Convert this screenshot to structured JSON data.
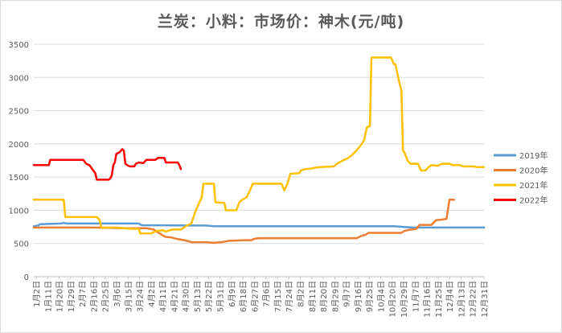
{
  "chart_data": {
    "type": "line",
    "title": "兰炭：小料：市场价：神木(元/吨)",
    "xlabel": "",
    "ylabel": "",
    "ylim": [
      0,
      3500
    ],
    "yticks": [
      0,
      500,
      1000,
      1500,
      2000,
      2500,
      3000,
      3500
    ],
    "grid": true,
    "legend_position": "right",
    "x_tick_labels": [
      "1月2日",
      "1月11日",
      "1月20日",
      "1月29日",
      "2月7日",
      "2月16日",
      "2月25日",
      "3月6日",
      "3月15日",
      "3月24日",
      "4月2日",
      "4月11日",
      "4月21日",
      "4月30日",
      "5月13日",
      "5月22日",
      "5月31日",
      "6月9日",
      "6月18日",
      "6月27日",
      "7月6日",
      "7月15日",
      "7月24日",
      "8月2日",
      "8月11日",
      "8月20日",
      "8月29日",
      "9月7日",
      "9月16日",
      "9月25日",
      "10月4日",
      "10月20日",
      "10月29日",
      "11月7日",
      "11月16日",
      "11月25日",
      "12月4日",
      "12月13日",
      "12月22日",
      "12月31日"
    ],
    "series": [
      {
        "name": "2019年",
        "color": "#5b9bd5",
        "points": [
          [
            0,
            760
          ],
          [
            3,
            770
          ],
          [
            4,
            790
          ],
          [
            18,
            800
          ],
          [
            20,
            810
          ],
          [
            22,
            800
          ],
          [
            40,
            800
          ],
          [
            70,
            800
          ],
          [
            72,
            775
          ],
          [
            110,
            770
          ],
          [
            115,
            770
          ],
          [
            120,
            760
          ],
          [
            140,
            760
          ],
          [
            205,
            760
          ],
          [
            220,
            760
          ],
          [
            228,
            760
          ],
          [
            240,
            760
          ],
          [
            252,
            740
          ],
          [
            300,
            740
          ]
        ]
      },
      {
        "name": "2020年",
        "color": "#ed7d31",
        "points": [
          [
            0,
            740
          ],
          [
            40,
            740
          ],
          [
            60,
            730
          ],
          [
            75,
            730
          ],
          [
            80,
            710
          ],
          [
            82,
            680
          ],
          [
            84,
            650
          ],
          [
            86,
            620
          ],
          [
            88,
            600
          ],
          [
            92,
            590
          ],
          [
            95,
            570
          ],
          [
            100,
            550
          ],
          [
            102,
            540
          ],
          [
            105,
            520
          ],
          [
            110,
            520
          ],
          [
            115,
            520
          ],
          [
            120,
            510
          ],
          [
            125,
            520
          ],
          [
            130,
            540
          ],
          [
            140,
            550
          ],
          [
            145,
            550
          ],
          [
            147,
            570
          ],
          [
            150,
            580
          ],
          [
            215,
            580
          ],
          [
            217,
            600
          ],
          [
            219,
            620
          ],
          [
            221,
            630
          ],
          [
            223,
            660
          ],
          [
            230,
            660
          ],
          [
            245,
            660
          ],
          [
            247,
            690
          ],
          [
            249,
            700
          ],
          [
            255,
            720
          ],
          [
            257,
            780
          ],
          [
            265,
            780
          ],
          [
            268,
            850
          ],
          [
            272,
            860
          ],
          [
            275,
            870
          ],
          [
            277,
            1160
          ],
          [
            280,
            1160
          ]
        ]
      },
      {
        "name": "2021年",
        "color": "#ffc000",
        "points": [
          [
            0,
            1160
          ],
          [
            20,
            1160
          ],
          [
            21,
            900
          ],
          [
            42,
            900
          ],
          [
            44,
            850
          ],
          [
            45,
            740
          ],
          [
            55,
            740
          ],
          [
            65,
            720
          ],
          [
            70,
            720
          ],
          [
            71,
            650
          ],
          [
            78,
            650
          ],
          [
            82,
            690
          ],
          [
            86,
            700
          ],
          [
            88,
            680
          ],
          [
            92,
            710
          ],
          [
            98,
            710
          ],
          [
            102,
            770
          ],
          [
            105,
            800
          ],
          [
            108,
            1000
          ],
          [
            112,
            1200
          ],
          [
            113,
            1400
          ],
          [
            120,
            1400
          ],
          [
            121,
            1120
          ],
          [
            127,
            1110
          ],
          [
            128,
            1000
          ],
          [
            135,
            1000
          ],
          [
            137,
            1120
          ],
          [
            139,
            1160
          ],
          [
            142,
            1200
          ],
          [
            144,
            1300
          ],
          [
            146,
            1400
          ],
          [
            165,
            1400
          ],
          [
            167,
            1300
          ],
          [
            169,
            1400
          ],
          [
            171,
            1550
          ],
          [
            177,
            1560
          ],
          [
            178,
            1600
          ],
          [
            181,
            1620
          ],
          [
            185,
            1630
          ],
          [
            190,
            1650
          ],
          [
            200,
            1660
          ],
          [
            202,
            1700
          ],
          [
            206,
            1750
          ],
          [
            209,
            1780
          ],
          [
            212,
            1830
          ],
          [
            215,
            1900
          ],
          [
            218,
            1980
          ],
          [
            220,
            2050
          ],
          [
            222,
            2250
          ],
          [
            224,
            2270
          ],
          [
            225,
            3300
          ],
          [
            238,
            3300
          ],
          [
            240,
            3200
          ],
          [
            241,
            3200
          ],
          [
            243,
            2980
          ],
          [
            245,
            2800
          ],
          [
            246,
            1900
          ],
          [
            247,
            1870
          ],
          [
            249,
            1750
          ],
          [
            251,
            1700
          ],
          [
            256,
            1700
          ],
          [
            258,
            1600
          ],
          [
            261,
            1600
          ],
          [
            263,
            1650
          ],
          [
            265,
            1680
          ],
          [
            269,
            1670
          ],
          [
            272,
            1700
          ],
          [
            277,
            1700
          ],
          [
            279,
            1680
          ],
          [
            284,
            1680
          ],
          [
            286,
            1660
          ],
          [
            293,
            1660
          ],
          [
            296,
            1650
          ],
          [
            300,
            1650
          ]
        ]
      },
      {
        "name": "2022年",
        "color": "#ff0000",
        "points": [
          [
            0,
            1680
          ],
          [
            10,
            1680
          ],
          [
            11,
            1760
          ],
          [
            33,
            1760
          ],
          [
            35,
            1700
          ],
          [
            37,
            1680
          ],
          [
            39,
            1620
          ],
          [
            41,
            1560
          ],
          [
            42,
            1460
          ],
          [
            50,
            1460
          ],
          [
            51,
            1480
          ],
          [
            52,
            1530
          ],
          [
            53,
            1680
          ],
          [
            54,
            1720
          ],
          [
            55,
            1850
          ],
          [
            57,
            1870
          ],
          [
            59,
            1920
          ],
          [
            60,
            1900
          ],
          [
            61,
            1700
          ],
          [
            63,
            1670
          ],
          [
            64,
            1660
          ],
          [
            67,
            1660
          ],
          [
            68,
            1700
          ],
          [
            70,
            1720
          ],
          [
            73,
            1710
          ],
          [
            75,
            1760
          ],
          [
            81,
            1760
          ],
          [
            83,
            1790
          ],
          [
            87,
            1790
          ],
          [
            88,
            1720
          ],
          [
            96,
            1720
          ],
          [
            97,
            1680
          ],
          [
            98,
            1620
          ]
        ]
      }
    ]
  }
}
